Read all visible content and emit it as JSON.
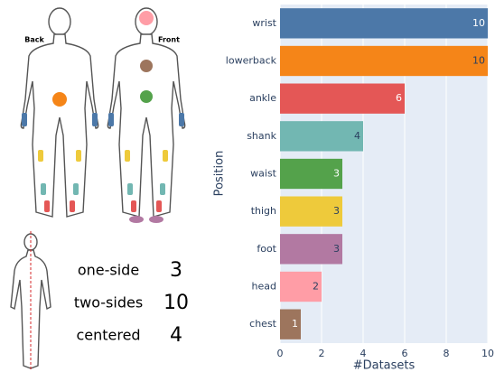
{
  "figure": {
    "back_label": "Back",
    "front_label": "Front",
    "placement": [
      [
        "one-side",
        3
      ],
      [
        "two-sides",
        10
      ],
      [
        "centered",
        4
      ]
    ]
  },
  "chart_data": {
    "type": "hbar",
    "y_label": "Position",
    "x_label": "#Datasets",
    "categories": [
      "wrist",
      "lowerback",
      "ankle",
      "shank",
      "waist",
      "thigh",
      "foot",
      "head",
      "chest"
    ],
    "values": [
      10,
      10,
      6,
      4,
      3,
      3,
      3,
      2,
      1
    ],
    "colors": [
      "#4c78a8",
      "#f58518",
      "#e45756",
      "#72b7b2",
      "#54a24b",
      "#eeca3b",
      "#b279a2",
      "#ff9da6",
      "#9d755d"
    ],
    "xlim": [
      0,
      10
    ],
    "xticks": [
      0,
      2,
      4,
      6,
      8,
      10
    ],
    "grid": true
  }
}
